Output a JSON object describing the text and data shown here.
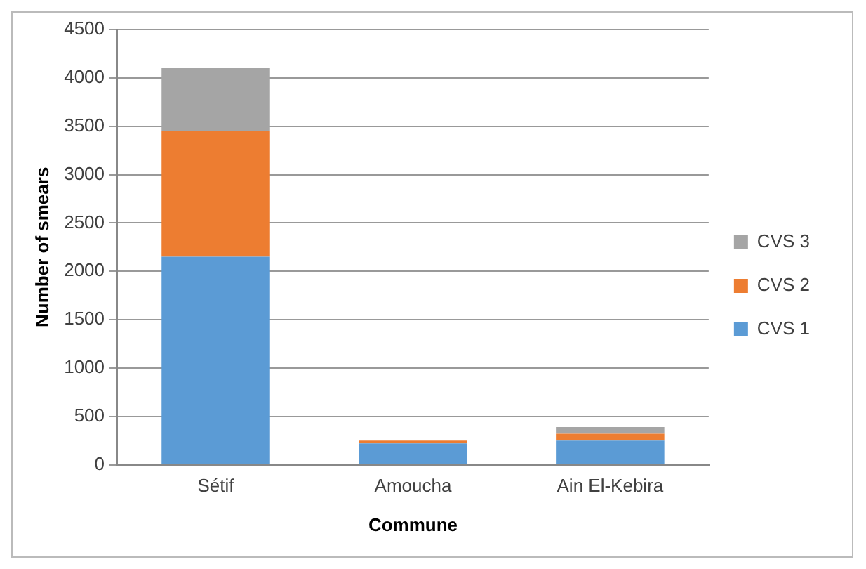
{
  "chart_data": {
    "type": "bar",
    "stacked": true,
    "xlabel": "Commune",
    "ylabel": "Number of smears",
    "categories": [
      "Sétif",
      "Amoucha",
      "Ain El-Kebira"
    ],
    "series": [
      {
        "name": "CVS 1",
        "color": "#5b9bd5",
        "values": [
          2150,
          220,
          250
        ]
      },
      {
        "name": "CVS 2",
        "color": "#ed7d31",
        "values": [
          1300,
          30,
          70
        ]
      },
      {
        "name": "CVS 3",
        "color": "#a5a5a5",
        "values": [
          650,
          null,
          70
        ]
      }
    ],
    "ylim": [
      0,
      4500
    ],
    "yticks": [
      0,
      500,
      1000,
      1500,
      2000,
      2500,
      3000,
      3500,
      4000,
      4500
    ],
    "grid": "y",
    "legend": "right"
  }
}
